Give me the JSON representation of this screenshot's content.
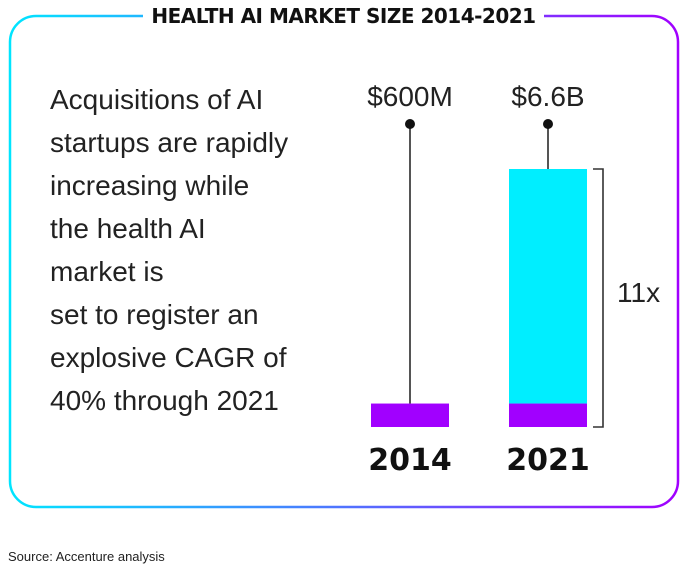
{
  "title": "HEALTH AI MARKET SIZE 2014-2021",
  "description_lines": [
    "Acquisitions of AI",
    "startups are rapidly",
    "increasing while",
    "the health AI",
    "market is",
    "set to register an",
    "explosive CAGR of",
    "40% through 2021"
  ],
  "source": "Source: Accenture analysis",
  "colors": {
    "frame_gradient_start": "#00e5ff",
    "frame_gradient_end": "#a100ff",
    "purple": "#a100ff",
    "cyan": "#00eeff",
    "stem": "#555555"
  },
  "chart_data": {
    "type": "bar",
    "categories": [
      "2014",
      "2021"
    ],
    "values": [
      0.6,
      6.6
    ],
    "unit": "billion USD",
    "value_labels": [
      "$600M",
      "$6.6B"
    ],
    "base_segment": 0.6,
    "bracket_label": "11x"
  }
}
